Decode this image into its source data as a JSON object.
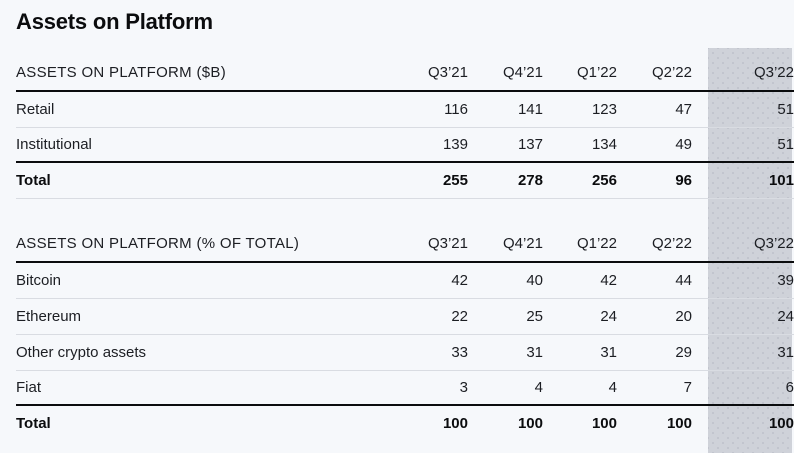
{
  "page": {
    "title": "Assets on Platform"
  },
  "columns": [
    "Q3’21",
    "Q4’21",
    "Q1’22",
    "Q2’22",
    "Q3’22"
  ],
  "highlight": {
    "column": "Q3’22",
    "band_color": "#cfd2d9",
    "dot_color": "#bdc1ca"
  },
  "colors": {
    "background": "#f6f8fb",
    "text": "#0b0c0e",
    "rule_strong": "#0b0c0e",
    "rule_light": "#d9dce2"
  },
  "tables": [
    {
      "section_label": "ASSETS ON PLATFORM ($B)",
      "rows": [
        {
          "label": "Retail",
          "values": [
            116,
            141,
            123,
            47,
            51
          ]
        },
        {
          "label": "Institutional",
          "values": [
            139,
            137,
            134,
            49,
            51
          ]
        },
        {
          "label": "Total",
          "values": [
            255,
            278,
            256,
            96,
            101
          ]
        }
      ]
    },
    {
      "section_label": "ASSETS ON PLATFORM (% OF TOTAL)",
      "rows": [
        {
          "label": "Bitcoin",
          "values": [
            42,
            40,
            42,
            44,
            39
          ]
        },
        {
          "label": "Ethereum",
          "values": [
            22,
            25,
            24,
            20,
            24
          ]
        },
        {
          "label": "Other crypto assets",
          "values": [
            33,
            31,
            31,
            29,
            31
          ]
        },
        {
          "label": "Fiat",
          "values": [
            3,
            4,
            4,
            7,
            6
          ]
        },
        {
          "label": "Total",
          "values": [
            100,
            100,
            100,
            100,
            100
          ]
        }
      ]
    }
  ]
}
